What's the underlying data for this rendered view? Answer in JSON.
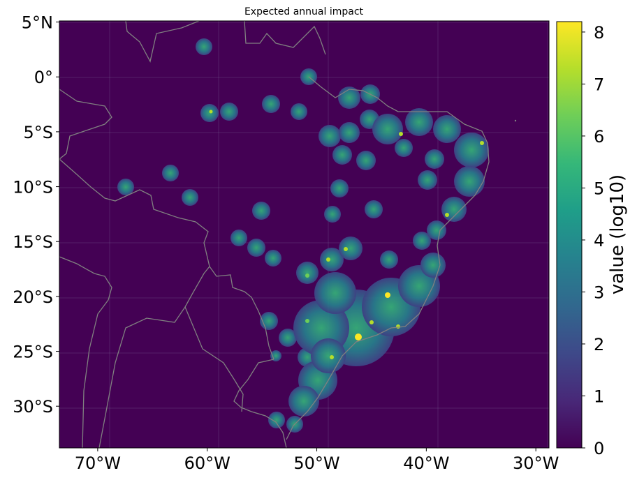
{
  "title": "Expected annual impact",
  "colorbar": {
    "label": "value (log10)",
    "ticks": [
      "0",
      "1",
      "2",
      "3",
      "4",
      "5",
      "6",
      "7",
      "8"
    ],
    "min": 0,
    "max": 8.2,
    "colormap": [
      "#440154",
      "#482878",
      "#3e4989",
      "#31688e",
      "#26828e",
      "#1f9e89",
      "#35b779",
      "#6ece58",
      "#b5de2b",
      "#fde725"
    ]
  },
  "map": {
    "background_color": "#440154",
    "border_color": "#808080",
    "lon_range": [
      -73.5,
      -28.8
    ],
    "lat_range": [
      -33.8,
      5.1
    ],
    "x_ticks": [
      {
        "lon": -70,
        "label": "70°W"
      },
      {
        "lon": -60,
        "label": "60°W"
      },
      {
        "lon": -50,
        "label": "50°W"
      },
      {
        "lon": -40,
        "label": "40°W"
      },
      {
        "lon": -30,
        "label": "30°W"
      }
    ],
    "y_ticks": [
      {
        "lat": 5,
        "label": "5°N"
      },
      {
        "lat": 0,
        "label": "0°"
      },
      {
        "lat": -5,
        "label": "5°S"
      },
      {
        "lat": -10,
        "label": "10°S"
      },
      {
        "lat": -15,
        "label": "15°S"
      },
      {
        "lat": -20,
        "label": "20°S"
      },
      {
        "lat": -25,
        "label": "25°S"
      },
      {
        "lat": -30,
        "label": "30°S"
      }
    ]
  }
}
